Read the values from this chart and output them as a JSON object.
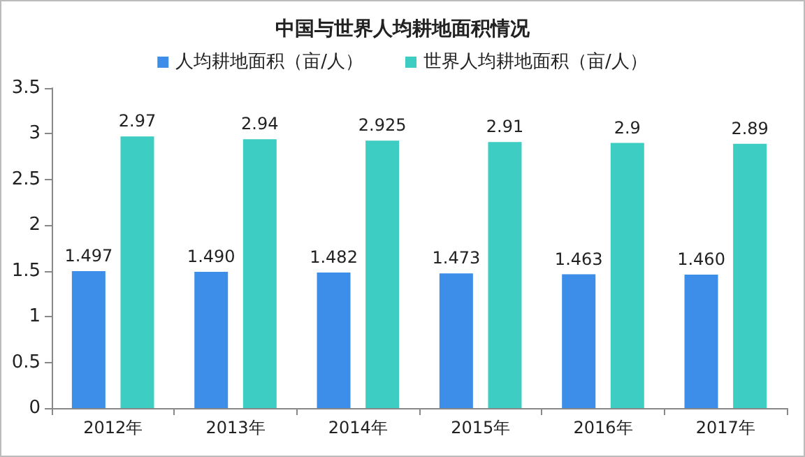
{
  "chart_data": {
    "type": "bar",
    "title": "中国与世界人均耕地面积情况",
    "categories": [
      "2012年",
      "2013年",
      "2014年",
      "2015年",
      "2016年",
      "2017年"
    ],
    "series": [
      {
        "name": "人均耕地面积（亩/人）",
        "color": "#3d8ee8",
        "values": [
          1.497,
          1.49,
          1.482,
          1.473,
          1.463,
          1.46
        ],
        "value_labels": [
          "1.497",
          "1.490",
          "1.482",
          "1.473",
          "1.463",
          "1.460"
        ]
      },
      {
        "name": "世界人均耕地面积（亩/人）",
        "color": "#3ecdc2",
        "values": [
          2.97,
          2.94,
          2.925,
          2.91,
          2.9,
          2.89
        ],
        "value_labels": [
          "2.97",
          "2.94",
          "2.925",
          "2.91",
          "2.9",
          "2.89"
        ]
      }
    ],
    "ylim": [
      0,
      3.5
    ],
    "yticks": [
      0,
      0.5,
      1,
      1.5,
      2,
      2.5,
      3,
      3.5
    ],
    "grid": false,
    "legend": "top"
  }
}
